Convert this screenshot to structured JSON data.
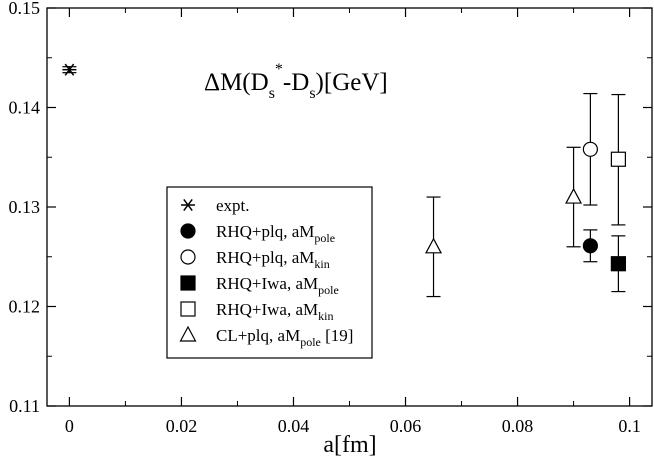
{
  "chart_data": {
    "type": "scatter",
    "title_main": "ΔM(D",
    "title_sub1": "s",
    "title_sup": "*",
    "title_mid": "-D",
    "title_sub2": "s",
    "title_end": ")[GeV]",
    "xlabel": "a[fm]",
    "ylabel": "",
    "xlim": [
      -0.004,
      0.104
    ],
    "ylim": [
      0.11,
      0.15
    ],
    "x_ticks": [
      0,
      0.02,
      0.04,
      0.06,
      0.08,
      0.1
    ],
    "x_tick_labels": [
      "0",
      "0.02",
      "0.04",
      "0.06",
      "0.08",
      "0.1"
    ],
    "y_ticks": [
      0.11,
      0.12,
      0.13,
      0.14,
      0.15
    ],
    "y_tick_labels": [
      "0.11",
      "0.12",
      "0.13",
      "0.14",
      "0.15"
    ],
    "grid": false,
    "legend_position": "center-left",
    "series": [
      {
        "name": "expt.",
        "marker": "asterisk",
        "points": [
          {
            "x": 0,
            "y": 0.1438,
            "err_low": 0.0003,
            "err_high": 0.0003
          }
        ]
      },
      {
        "name": "RHQ+plq, aM",
        "name_sub": "pole",
        "marker": "circle-filled",
        "points": [
          {
            "x": 0.093,
            "y": 0.1261,
            "err_low": 0.0016,
            "err_high": 0.0016
          }
        ]
      },
      {
        "name": "RHQ+plq, aM",
        "name_sub": "kin",
        "marker": "circle-open",
        "points": [
          {
            "x": 0.093,
            "y": 0.1358,
            "err_low": 0.0056,
            "err_high": 0.0056
          }
        ]
      },
      {
        "name": "RHQ+Iwa, aM",
        "name_sub": "pole",
        "marker": "square-filled",
        "points": [
          {
            "x": 0.098,
            "y": 0.1243,
            "err_low": 0.0028,
            "err_high": 0.0028
          }
        ]
      },
      {
        "name": "RHQ+Iwa, aM",
        "name_sub": "kin",
        "marker": "square-open",
        "points": [
          {
            "x": 0.098,
            "y": 0.1348,
            "err_low": 0.0066,
            "err_high": 0.0065
          }
        ]
      },
      {
        "name": "CL+plq, aM",
        "name_sub": "pole",
        "name_suffix": " [19]",
        "marker": "triangle-open",
        "points": [
          {
            "x": 0.065,
            "y": 0.126,
            "err_low": 0.005,
            "err_high": 0.005
          },
          {
            "x": 0.09,
            "y": 0.131,
            "err_low": 0.005,
            "err_high": 0.005
          }
        ]
      }
    ]
  }
}
